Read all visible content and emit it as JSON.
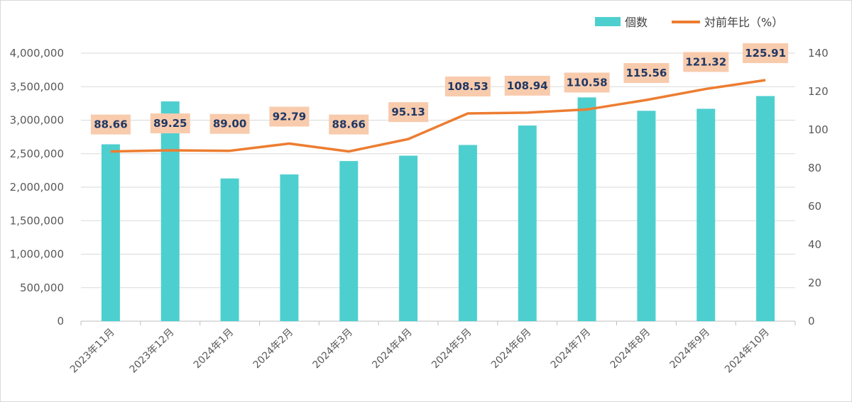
{
  "chart_data": {
    "type": "bar",
    "categories": [
      "2023年11月",
      "2023年12月",
      "2024年1月",
      "2024年2月",
      "2024年3月",
      "2024年4月",
      "2024年5月",
      "2024年6月",
      "2024年7月",
      "2024年8月",
      "2024年9月",
      "2024年10月"
    ],
    "series": [
      {
        "name": "個数",
        "type": "bar",
        "axis": "left",
        "color": "#4ECFCF",
        "values": [
          2640000,
          3280000,
          2130000,
          2190000,
          2390000,
          2470000,
          2630000,
          2920000,
          3340000,
          3140000,
          3170000,
          3360000
        ]
      },
      {
        "name": "対前年比（%）",
        "type": "line",
        "axis": "right",
        "color": "#ED7D31",
        "values": [
          88.66,
          89.25,
          89.0,
          92.79,
          88.66,
          95.13,
          108.53,
          108.94,
          110.58,
          115.56,
          121.32,
          125.91
        ],
        "labels": [
          "88.66",
          "89.25",
          "89.00",
          "92.79",
          "88.66",
          "95.13",
          "108.53",
          "108.94",
          "110.58",
          "115.56",
          "121.32",
          "125.91"
        ]
      }
    ],
    "yleft": {
      "range": [
        0,
        4000000
      ],
      "ticks": [
        "0",
        "500,000",
        "1,000,000",
        "1,500,000",
        "2,000,000",
        "2,500,000",
        "3,000,000",
        "3,500,000",
        "4,000,000"
      ]
    },
    "yright": {
      "range": [
        0,
        140
      ],
      "ticks": [
        "0",
        "20",
        "40",
        "60",
        "80",
        "100",
        "120",
        "140"
      ]
    },
    "grid": true,
    "legend_position": "top-right",
    "label_box_color": "#F8CBAD"
  }
}
